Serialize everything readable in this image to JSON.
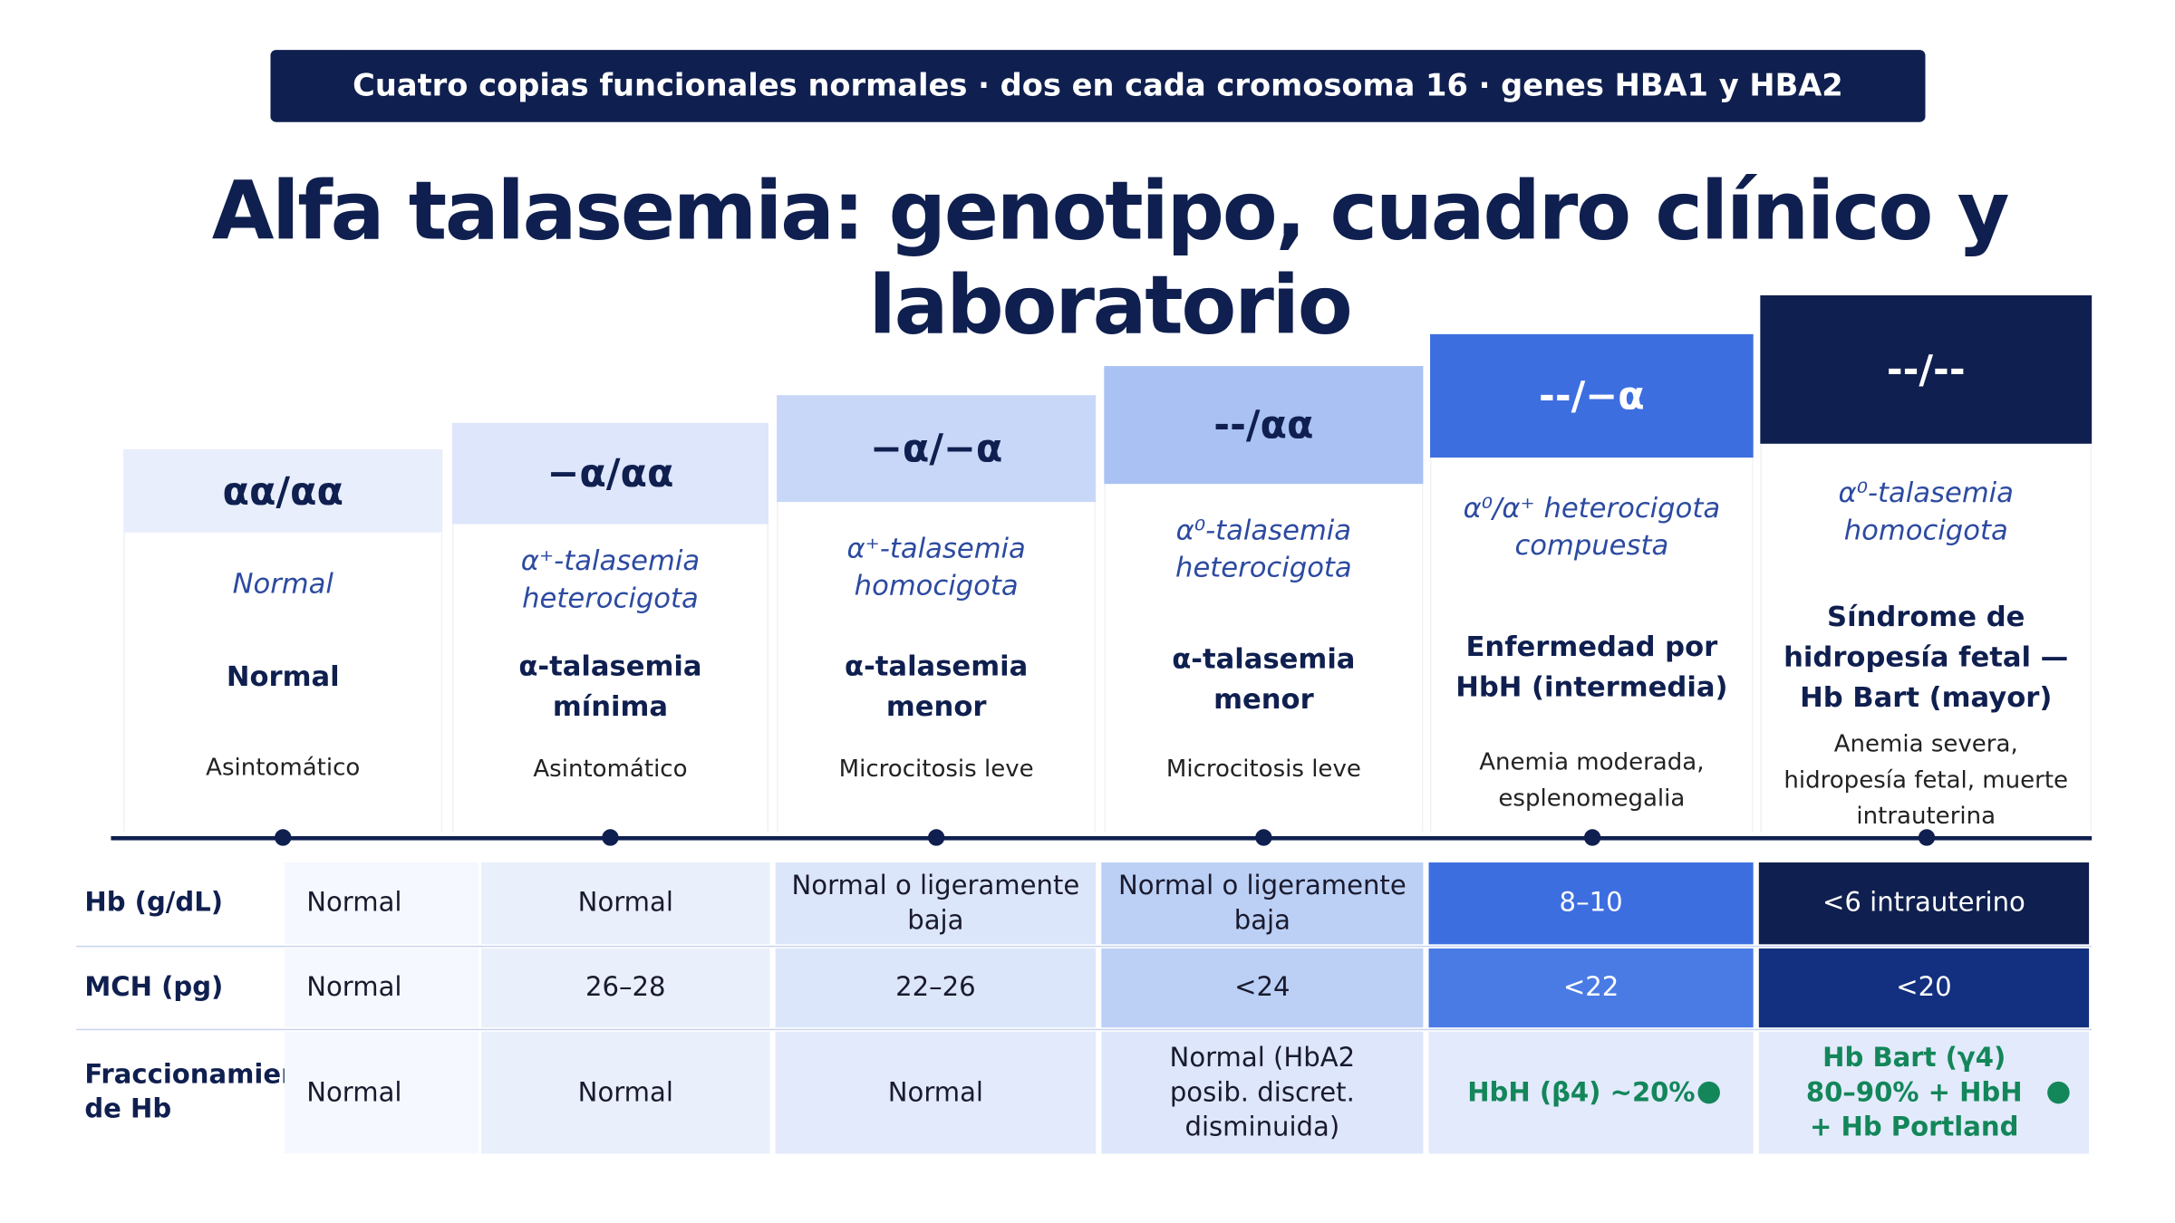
{
  "banner": "Cuatro copias funcionales normales · dos en cada cromosoma 16 · genes HBA1 y HBA2",
  "title": "Alfa talasemia: genotipo, cuadro clínico y laboratorio",
  "columns": [
    {
      "genotype": "αα/αα",
      "description": "Normal",
      "clinical": "Normal",
      "symptoms": "Asintomático"
    },
    {
      "genotype": "−α/αα",
      "description": "α⁺-talasemia heterocigota",
      "clinical": "α-talasemia mínima",
      "symptoms": "Asintomático"
    },
    {
      "genotype": "−α/−α",
      "description": "α⁺-talasemia homocigota",
      "clinical": "α-talasemia menor",
      "symptoms": "Microcitosis leve"
    },
    {
      "genotype": "--/αα",
      "description": "α⁰-talasemia heterocigota",
      "clinical": "α-talasemia menor",
      "symptoms": "Microcitosis leve"
    },
    {
      "genotype": "--/−α",
      "description": "α⁰/α⁺ heterocigota compuesta",
      "clinical": "Enfermedad por HbH (intermedia)",
      "symptoms": "Anemia moderada, esplenomegalia"
    },
    {
      "genotype": "--/--",
      "description": "α⁰-talasemia homocigota",
      "clinical": "Síndrome de hidropesía fetal — Hb Bart (mayor)",
      "symptoms": "Anemia severa, hidropesía fetal, muerte intrauterina"
    }
  ],
  "table": {
    "rows": [
      {
        "label": "Hb (g/dL)",
        "values": [
          "Normal",
          "Normal",
          "Normal o ligeramente baja",
          "Normal o ligeramente baja",
          "8–10",
          "<6 intrauterino"
        ]
      },
      {
        "label": "MCH (pg)",
        "values": [
          "Normal",
          "26–28",
          "22–26",
          "<24",
          "<22",
          "<20"
        ]
      },
      {
        "label": "Fraccionamiento de Hb",
        "values": [
          "Normal",
          "Normal",
          "Normal",
          "Normal (HbA2 posib. discret. disminuida)",
          "HbH (β4) ~20%",
          "Hb Bart (γ4) 80–90% + HbH + Hb Portland"
        ]
      }
    ]
  }
}
